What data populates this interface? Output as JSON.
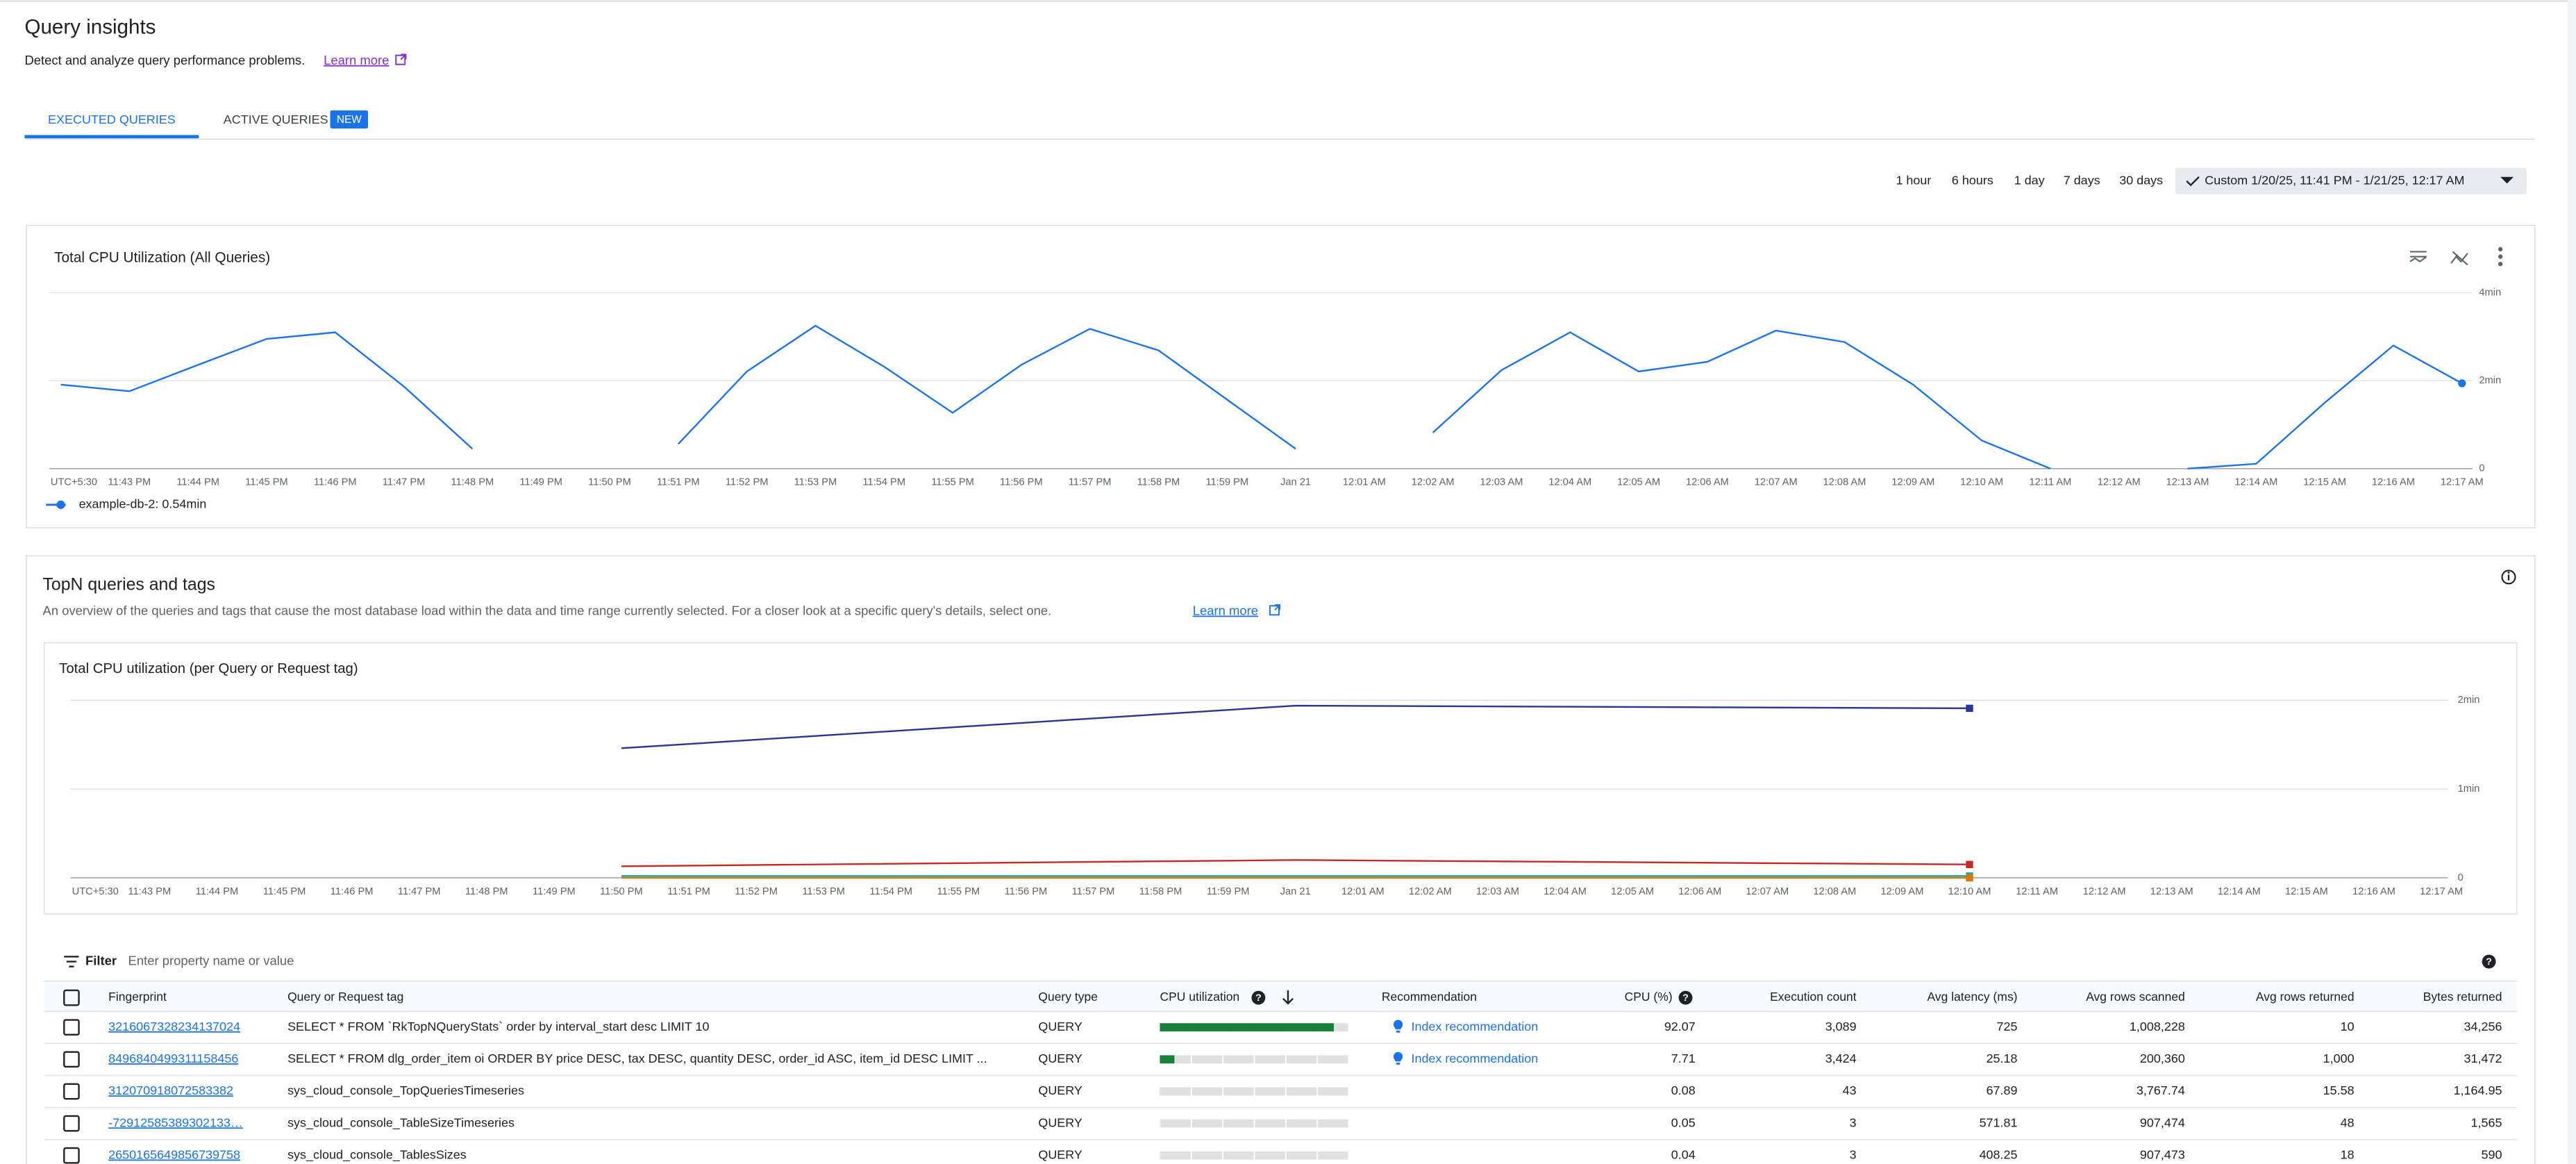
{
  "header": {
    "title": "Query insights",
    "description": "Detect and analyze query performance problems.",
    "learn_more": "Learn more"
  },
  "tabs": [
    {
      "label": "EXECUTED QUERIES"
    },
    {
      "label": "ACTIVE QUERIES",
      "badge": "NEW"
    }
  ],
  "time_ranges": [
    "1 hour",
    "6 hours",
    "1 day",
    "7 days",
    "30 days"
  ],
  "custom_range": "Custom 1/20/25, 11:41 PM - 1/21/25, 12:17 AM",
  "cpu_chart": {
    "type": "line",
    "title": "Total CPU Utilization (All Queries)",
    "categories": [
      "UTC+5:30",
      "11:43 PM",
      "11:44 PM",
      "11:45 PM",
      "11:46 PM",
      "11:47 PM",
      "11:48 PM",
      "11:49 PM",
      "11:50 PM",
      "11:51 PM",
      "11:52 PM",
      "11:53 PM",
      "11:54 PM",
      "11:55 PM",
      "11:56 PM",
      "11:57 PM",
      "11:58 PM",
      "11:59 PM",
      "Jan 21",
      "12:01 AM",
      "12:02 AM",
      "12:03 AM",
      "12:04 AM",
      "12:05 AM",
      "12:06 AM",
      "12:07 AM",
      "12:08 AM",
      "12:09 AM",
      "12:10 AM",
      "12:11 AM",
      "12:12 AM",
      "12:13 AM",
      "12:14 AM",
      "12:15 AM",
      "12:16 AM",
      "12:17 AM"
    ],
    "series": [
      {
        "color": "#1a73e8",
        "values": [
          1.91,
          1.76,
          2.36,
          2.95,
          3.1,
          1.87,
          0.45,
          null,
          null,
          0.56,
          2.21,
          3.25,
          2.32,
          1.27,
          2.36,
          3.18,
          2.69,
          1.57,
          0.45,
          null,
          0.82,
          2.24,
          3.1,
          2.21,
          2.43,
          3.14,
          2.88,
          1.91,
          0.64,
          0,
          null,
          0,
          0.11,
          1.5,
          2.8,
          1.94
        ]
      }
    ],
    "legend": "example-db-2: 0.54min",
    "ylim": [
      0,
      4
    ],
    "yticks": [
      0,
      {
        "value": 2,
        "label": "2min"
      },
      {
        "value": 4,
        "label": "4min"
      }
    ],
    "grid": true
  },
  "topn": {
    "title": "TopN queries and tags",
    "description": "An overview of the queries and tags that cause the most database load within the data and time range currently selected. For a closer look at a specific query's details, select one.",
    "learn_more": "Learn more",
    "chart": {
      "type": "line",
      "title": "Total CPU utilization (per Query or Request tag)",
      "categories": [
        "UTC+5:30",
        "11:43 PM",
        "11:44 PM",
        "11:45 PM",
        "11:46 PM",
        "11:47 PM",
        "11:48 PM",
        "11:49 PM",
        "11:50 PM",
        "11:51 PM",
        "11:52 PM",
        "11:53 PM",
        "11:54 PM",
        "11:55 PM",
        "11:56 PM",
        "11:57 PM",
        "11:58 PM",
        "11:59 PM",
        "Jan 21",
        "12:01 AM",
        "12:02 AM",
        "12:03 AM",
        "12:04 AM",
        "12:05 AM",
        "12:06 AM",
        "12:07 AM",
        "12:08 AM",
        "12:09 AM",
        "12:10 AM",
        "12:11 AM",
        "12:12 AM",
        "12:13 AM",
        "12:14 AM",
        "12:15 AM",
        "12:16 AM",
        "12:17 AM"
      ],
      "x": [
        "11:50 PM",
        "Jan 21",
        "12:10 AM"
      ],
      "series": [
        {
          "color": "#283593",
          "values": [
            1.46,
            1.94,
            1.91
          ]
        },
        {
          "color": "#c62828",
          "values": [
            0.13,
            0.2,
            0.15
          ]
        },
        {
          "color": "#12a4af",
          "values": [
            0.02,
            0.02,
            0.02
          ]
        },
        {
          "color": "#e37400",
          "values": [
            0,
            0,
            0
          ]
        }
      ],
      "ylim": [
        0,
        2
      ],
      "yticks": [
        0,
        {
          "value": 1,
          "label": "1min"
        },
        {
          "value": 2,
          "label": "2min"
        }
      ],
      "grid": true
    },
    "filter": {
      "label": "Filter",
      "placeholder": "Enter property name or value"
    },
    "table": {
      "columns": [
        "Fingerprint",
        "Query or Request tag",
        "Query type",
        "CPU utilization",
        "Recommendation",
        "CPU (%)",
        "Execution count",
        "Avg latency (ms)",
        "Avg rows scanned",
        "Avg rows returned",
        "Bytes returned"
      ],
      "rows": [
        {
          "fingerprint": "3216067328234137024",
          "tag": "SELECT * FROM `RkTopNQueryStats` order by interval_start desc LIMIT 10",
          "type": "QUERY",
          "recommendation": "Index recommendation",
          "cpu": 92.07,
          "executions": "3,089",
          "latency": "725",
          "rows_scanned": "1,008,228",
          "rows_returned": "10",
          "bytes": "34,256"
        },
        {
          "fingerprint": "8496840499311158456",
          "tag": "SELECT * FROM dlg_order_item oi ORDER BY price DESC, tax DESC, quantity DESC, order_id ASC, item_id DESC LIMIT ...",
          "type": "QUERY",
          "recommendation": "Index recommendation",
          "cpu": 7.71,
          "executions": "3,424",
          "latency": "25.18",
          "rows_scanned": "200,360",
          "rows_returned": "1,000",
          "bytes": "31,472"
        },
        {
          "fingerprint": "312070918072583382",
          "tag": "sys_cloud_console_TopQueriesTimeseries",
          "type": "QUERY",
          "cpu": 0.08,
          "executions": "43",
          "latency": "67.89",
          "rows_scanned": "3,767.74",
          "rows_returned": "15.58",
          "bytes": "1,164.95"
        },
        {
          "fingerprint": "-72912585389302133…",
          "tag": "sys_cloud_console_TableSizeTimeseries",
          "type": "QUERY",
          "cpu": 0.05,
          "executions": "3",
          "latency": "571.81",
          "rows_scanned": "907,474",
          "rows_returned": "48",
          "bytes": "1,565"
        },
        {
          "fingerprint": "2650165649856739758",
          "tag": "sys_cloud_console_TablesSizes",
          "type": "QUERY",
          "cpu": 0.04,
          "executions": "3",
          "latency": "408.25",
          "rows_scanned": "907,473",
          "rows_returned": "18",
          "bytes": "590"
        }
      ]
    }
  }
}
